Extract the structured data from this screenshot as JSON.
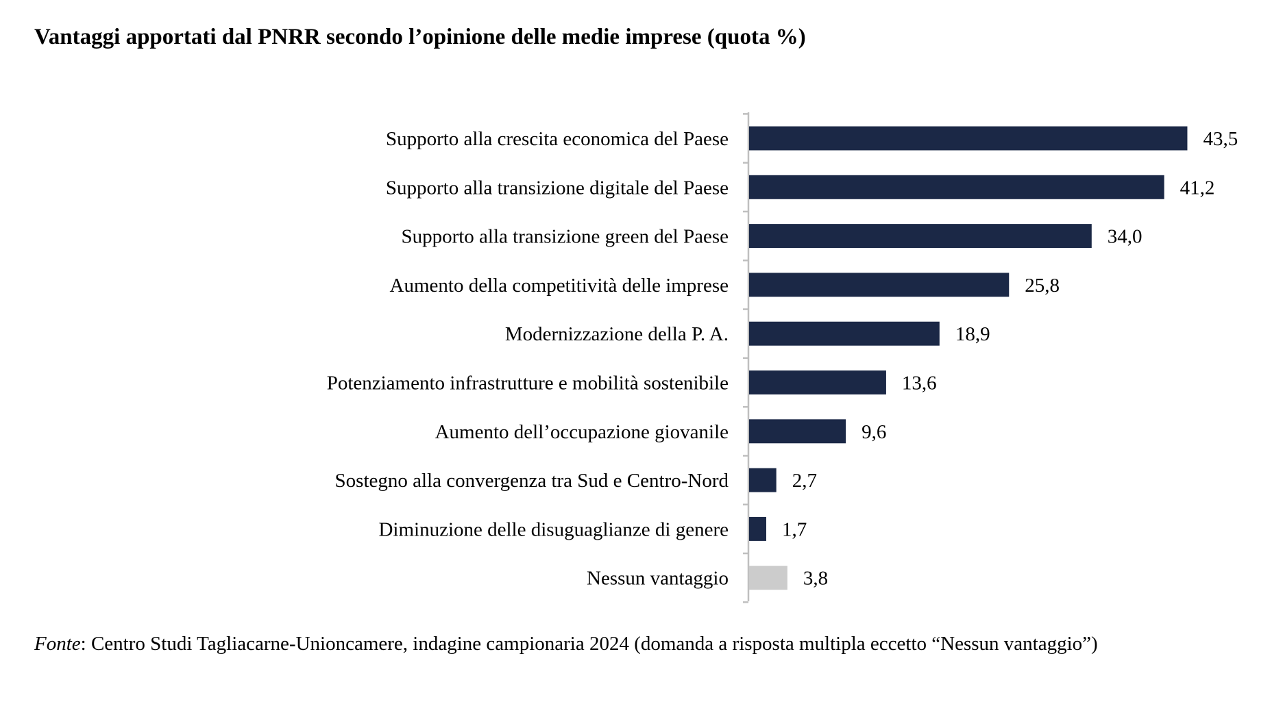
{
  "title": "Vantaggi apportati dal PNRR secondo l’opinione delle medie imprese (quota %)",
  "source": {
    "label": "Fonte",
    "text": ": Centro Studi Tagliacarne-Unioncamere, indagine campionaria 2024 (domanda a risposta multipla eccetto “Nessun vantaggio”)"
  },
  "colors": {
    "bar": "#1b2846",
    "bar_highlight": "#cccccc",
    "axis": "#bfbfbf"
  },
  "chart_data": {
    "type": "bar",
    "orientation": "horizontal",
    "title": "Vantaggi apportati dal PNRR secondo l’opinione delle medie imprese (quota %)",
    "categories": [
      "Supporto alla crescita economica del Paese",
      "Supporto alla transizione digitale del Paese",
      "Supporto alla transizione green del Paese",
      "Aumento della competitività delle imprese",
      "Modernizzazione della P. A.",
      "Potenziamento infrastrutture e mobilità sostenibile",
      "Aumento dell’occupazione giovanile",
      "Sostegno alla convergenza tra Sud e Centro-Nord",
      "Diminuzione delle disuguaglianze di genere",
      "Nessun vantaggio"
    ],
    "values": [
      43.5,
      41.2,
      34.0,
      25.8,
      18.9,
      13.6,
      9.6,
      2.7,
      1.7,
      3.8
    ],
    "value_labels": [
      "43,5",
      "41,2",
      "34,0",
      "25,8",
      "18,9",
      "13,6",
      "9,6",
      "2,7",
      "1,7",
      "3,8"
    ],
    "highlight_category": "Nessun vantaggio",
    "xlabel": "",
    "ylabel": "",
    "xlim": [
      0,
      45
    ],
    "grid": false,
    "legend": "none"
  }
}
